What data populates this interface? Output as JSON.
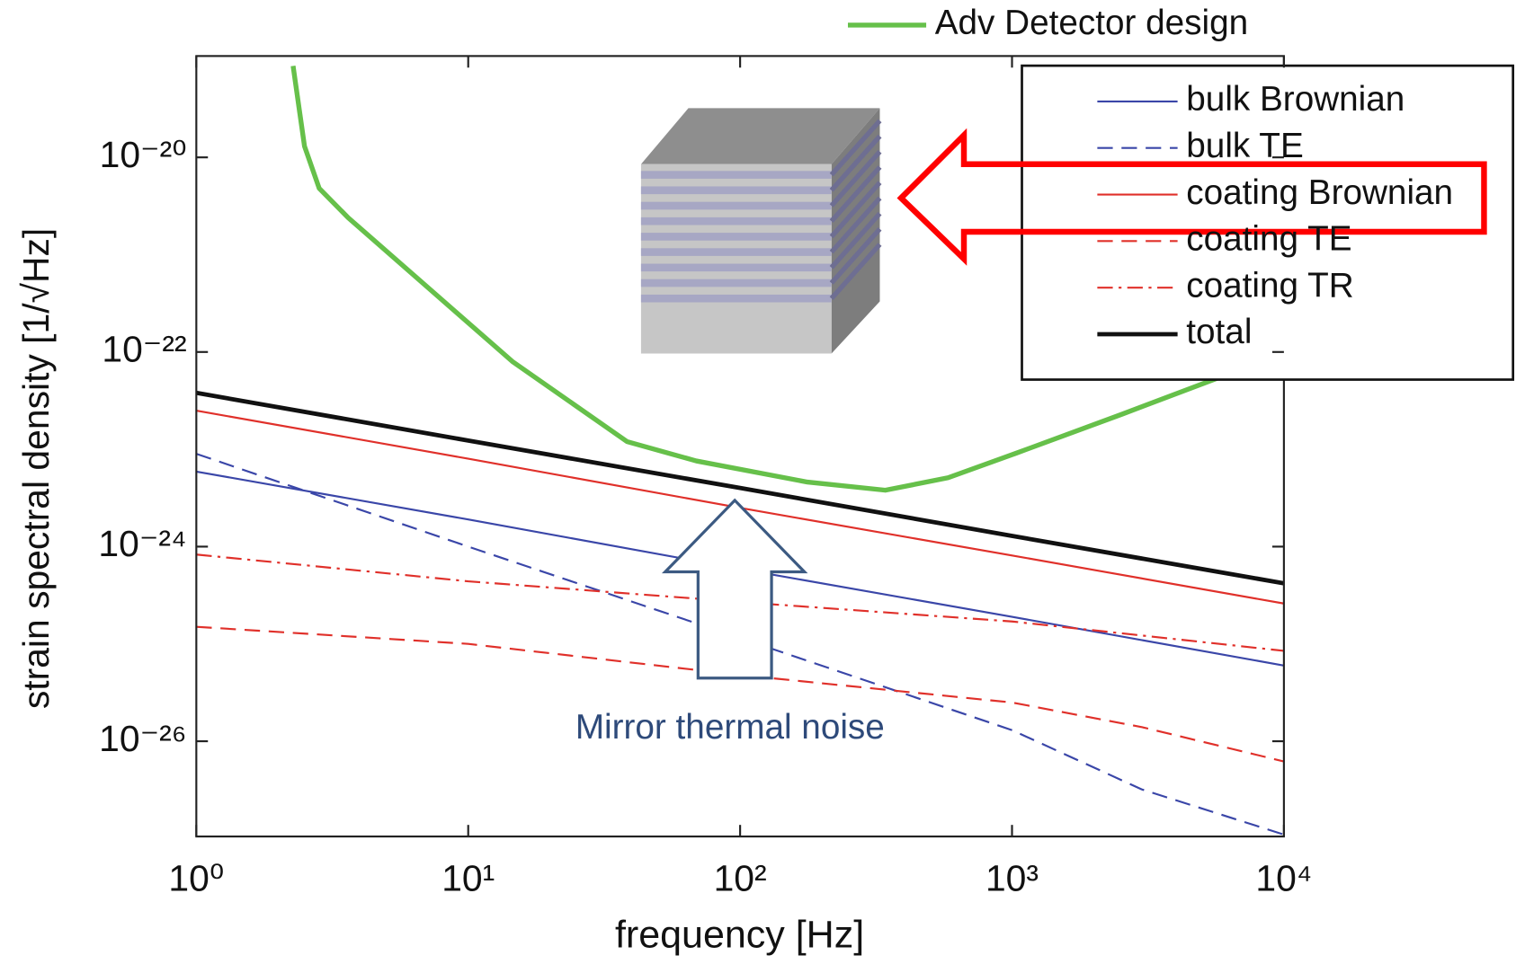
{
  "chart_data": {
    "type": "line",
    "xlabel": "frequency [Hz]",
    "ylabel": "strain spectral density [1/√Hz]",
    "xscale": "log",
    "yscale": "log",
    "xlim": [
      1,
      10000
    ],
    "ylim": [
      1.05e-27,
      1.1e-19
    ],
    "xticks": [
      {
        "value": 1,
        "label": "10⁰"
      },
      {
        "value": 10,
        "label": "10¹"
      },
      {
        "value": 100,
        "label": "10²"
      },
      {
        "value": 1000,
        "label": "10³"
      },
      {
        "value": 10000,
        "label": "10⁴"
      }
    ],
    "yticks": [
      {
        "value": 1e-26,
        "label": "10⁻²⁶"
      },
      {
        "value": 1e-24,
        "label": "10⁻²⁴"
      },
      {
        "value": 1e-22,
        "label": "10⁻²²"
      },
      {
        "value": 1e-20,
        "label": "10⁻²⁰"
      }
    ],
    "legend": "upper right",
    "annotation": "Mirror thermal noise",
    "series": [
      {
        "name": "Adv Detector design",
        "color": "#66c04a",
        "dash": "solid",
        "width": 5,
        "x": [
          2.27,
          2.5,
          2.83,
          3.62,
          14.6,
          38.4,
          69,
          177,
          342,
          582,
          1033,
          2545,
          6013
        ],
        "values": [
          8.7e-20,
          1.3e-20,
          4.8e-21,
          2.4e-21,
          7.9e-23,
          1.2e-23,
          7.6e-24,
          4.6e-24,
          3.8e-24,
          5.1e-24,
          9.1e-24,
          2.3e-23,
          5.7e-23
        ]
      },
      {
        "name": "bulk Brownian",
        "color": "#3a46a8",
        "dash": "solid",
        "width": 2,
        "x": [
          1,
          10,
          100,
          1000,
          10000
        ],
        "values": [
          5.9e-24,
          1.9e-24,
          5.9e-25,
          1.9e-25,
          6e-26
        ]
      },
      {
        "name": "bulk TE",
        "color": "#3a46a8",
        "dash": "dashed",
        "width": 2,
        "x": [
          1,
          10,
          100,
          1000,
          3000,
          10000
        ],
        "values": [
          9e-24,
          1e-24,
          1.15e-25,
          1.3e-26,
          3.2e-27,
          1.1e-27
        ]
      },
      {
        "name": "coating Brownian",
        "color": "#e0302a",
        "dash": "solid",
        "width": 2,
        "x": [
          1,
          10,
          100,
          1000,
          10000
        ],
        "values": [
          2.5e-23,
          8e-24,
          2.5e-24,
          8.1e-25,
          2.6e-25
        ]
      },
      {
        "name": "coating TE",
        "color": "#e0302a",
        "dash": "dashed",
        "width": 2,
        "x": [
          1,
          10,
          100,
          1000,
          3000,
          10000
        ],
        "values": [
          1.5e-25,
          1e-25,
          4.8e-26,
          2.5e-26,
          1.4e-26,
          6.2e-27
        ]
      },
      {
        "name": "coating TR",
        "color": "#e0302a",
        "dash": "dashdot",
        "width": 2,
        "x": [
          1,
          10,
          100,
          1000,
          10000
        ],
        "values": [
          8.3e-25,
          4.4e-25,
          2.7e-25,
          1.7e-25,
          8.5e-26
        ]
      },
      {
        "name": "total",
        "color": "#111111",
        "dash": "solid",
        "width": 4.5,
        "x": [
          1,
          10,
          100,
          1000,
          10000
        ],
        "values": [
          3.8e-23,
          1.23e-23,
          4e-24,
          1.29e-24,
          4.2e-25
        ]
      }
    ]
  }
}
